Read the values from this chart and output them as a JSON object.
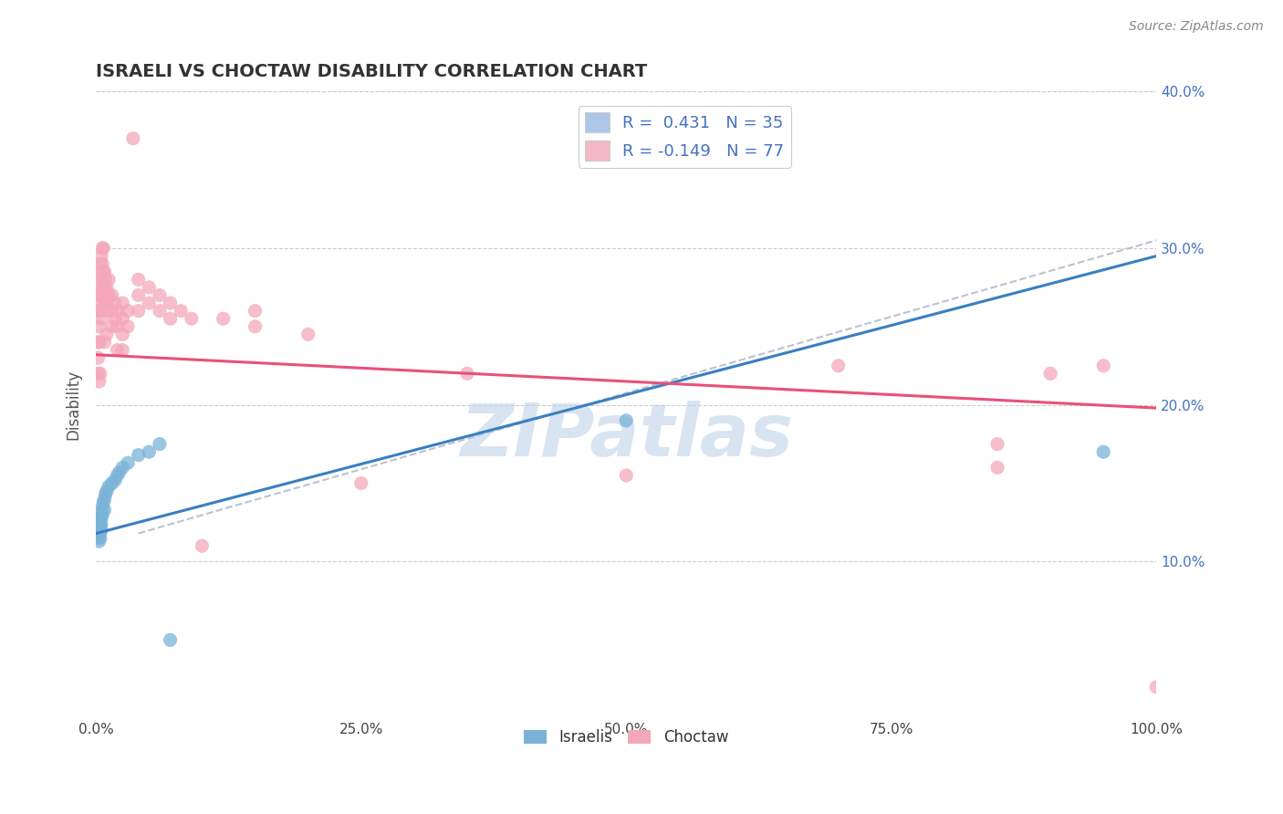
{
  "title": "ISRAELI VS CHOCTAW DISABILITY CORRELATION CHART",
  "source": "Source: ZipAtlas.com",
  "ylabel": "Disability",
  "xlabel": "",
  "xlim": [
    0,
    1.0
  ],
  "ylim": [
    0,
    0.4
  ],
  "xtick_vals": [
    0.0,
    0.25,
    0.5,
    0.75,
    1.0
  ],
  "xtick_labels": [
    "0.0%",
    "25.0%",
    "50.0%",
    "75.0%",
    "100.0%"
  ],
  "ytick_vals": [
    0.1,
    0.2,
    0.3,
    0.4
  ],
  "ytick_labels": [
    "10.0%",
    "20.0%",
    "30.0%",
    "40.0%"
  ],
  "legend_blue_label": "R =  0.431   N = 35",
  "legend_pink_label": "R = -0.149   N = 77",
  "legend_blue_color": "#aec6e8",
  "legend_pink_color": "#f4b8c8",
  "watermark": "ZIPatlas",
  "watermark_color": "#b8cfe8",
  "israeli_color": "#7ab3d8",
  "choctaw_color": "#f4a7b9",
  "israeli_line_color": "#3a7fc1",
  "choctaw_line_color": "#e8517a",
  "dashed_line_color": "#b0b8c8",
  "israeli_line_x": [
    0.0,
    1.0
  ],
  "israeli_line_y": [
    0.118,
    0.295
  ],
  "choctaw_line_x": [
    0.0,
    1.0
  ],
  "choctaw_line_y": [
    0.232,
    0.198
  ],
  "dashed_line_x": [
    0.04,
    1.0
  ],
  "dashed_line_y": [
    0.118,
    0.305
  ],
  "israeli_points": [
    [
      0.002,
      0.122
    ],
    [
      0.002,
      0.118
    ],
    [
      0.002,
      0.115
    ],
    [
      0.003,
      0.125
    ],
    [
      0.003,
      0.12
    ],
    [
      0.003,
      0.117
    ],
    [
      0.003,
      0.113
    ],
    [
      0.004,
      0.128
    ],
    [
      0.004,
      0.123
    ],
    [
      0.004,
      0.119
    ],
    [
      0.004,
      0.115
    ],
    [
      0.005,
      0.132
    ],
    [
      0.005,
      0.128
    ],
    [
      0.005,
      0.124
    ],
    [
      0.005,
      0.12
    ],
    [
      0.006,
      0.135
    ],
    [
      0.006,
      0.13
    ],
    [
      0.007,
      0.138
    ],
    [
      0.008,
      0.14
    ],
    [
      0.008,
      0.133
    ],
    [
      0.009,
      0.143
    ],
    [
      0.01,
      0.145
    ],
    [
      0.012,
      0.148
    ],
    [
      0.015,
      0.15
    ],
    [
      0.018,
      0.152
    ],
    [
      0.02,
      0.155
    ],
    [
      0.022,
      0.157
    ],
    [
      0.025,
      0.16
    ],
    [
      0.03,
      0.163
    ],
    [
      0.04,
      0.168
    ],
    [
      0.05,
      0.17
    ],
    [
      0.06,
      0.175
    ],
    [
      0.07,
      0.05
    ],
    [
      0.5,
      0.19
    ],
    [
      0.95,
      0.17
    ]
  ],
  "choctaw_points": [
    [
      0.002,
      0.24
    ],
    [
      0.002,
      0.23
    ],
    [
      0.002,
      0.22
    ],
    [
      0.003,
      0.27
    ],
    [
      0.003,
      0.26
    ],
    [
      0.003,
      0.25
    ],
    [
      0.003,
      0.24
    ],
    [
      0.004,
      0.29
    ],
    [
      0.004,
      0.28
    ],
    [
      0.004,
      0.27
    ],
    [
      0.004,
      0.26
    ],
    [
      0.005,
      0.295
    ],
    [
      0.005,
      0.285
    ],
    [
      0.005,
      0.275
    ],
    [
      0.005,
      0.265
    ],
    [
      0.005,
      0.255
    ],
    [
      0.006,
      0.3
    ],
    [
      0.006,
      0.29
    ],
    [
      0.006,
      0.28
    ],
    [
      0.006,
      0.27
    ],
    [
      0.007,
      0.3
    ],
    [
      0.007,
      0.285
    ],
    [
      0.007,
      0.275
    ],
    [
      0.008,
      0.285
    ],
    [
      0.008,
      0.275
    ],
    [
      0.008,
      0.265
    ],
    [
      0.009,
      0.28
    ],
    [
      0.009,
      0.27
    ],
    [
      0.01,
      0.275
    ],
    [
      0.01,
      0.265
    ],
    [
      0.012,
      0.28
    ],
    [
      0.012,
      0.27
    ],
    [
      0.012,
      0.26
    ],
    [
      0.015,
      0.27
    ],
    [
      0.015,
      0.26
    ],
    [
      0.015,
      0.25
    ],
    [
      0.018,
      0.265
    ],
    [
      0.018,
      0.255
    ],
    [
      0.02,
      0.26
    ],
    [
      0.02,
      0.25
    ],
    [
      0.025,
      0.265
    ],
    [
      0.025,
      0.255
    ],
    [
      0.025,
      0.245
    ],
    [
      0.03,
      0.26
    ],
    [
      0.03,
      0.25
    ],
    [
      0.035,
      0.37
    ],
    [
      0.04,
      0.28
    ],
    [
      0.04,
      0.27
    ],
    [
      0.04,
      0.26
    ],
    [
      0.05,
      0.275
    ],
    [
      0.05,
      0.265
    ],
    [
      0.06,
      0.27
    ],
    [
      0.06,
      0.26
    ],
    [
      0.07,
      0.265
    ],
    [
      0.07,
      0.255
    ],
    [
      0.08,
      0.26
    ],
    [
      0.09,
      0.255
    ],
    [
      0.1,
      0.11
    ],
    [
      0.12,
      0.255
    ],
    [
      0.15,
      0.26
    ],
    [
      0.15,
      0.25
    ],
    [
      0.2,
      0.245
    ],
    [
      0.25,
      0.15
    ],
    [
      0.35,
      0.22
    ],
    [
      0.5,
      0.155
    ],
    [
      0.7,
      0.225
    ],
    [
      0.85,
      0.175
    ],
    [
      0.85,
      0.16
    ],
    [
      0.9,
      0.22
    ],
    [
      0.95,
      0.225
    ],
    [
      1.0,
      0.02
    ],
    [
      0.02,
      0.235
    ],
    [
      0.025,
      0.235
    ],
    [
      0.008,
      0.24
    ],
    [
      0.01,
      0.245
    ],
    [
      0.003,
      0.215
    ],
    [
      0.004,
      0.22
    ]
  ]
}
